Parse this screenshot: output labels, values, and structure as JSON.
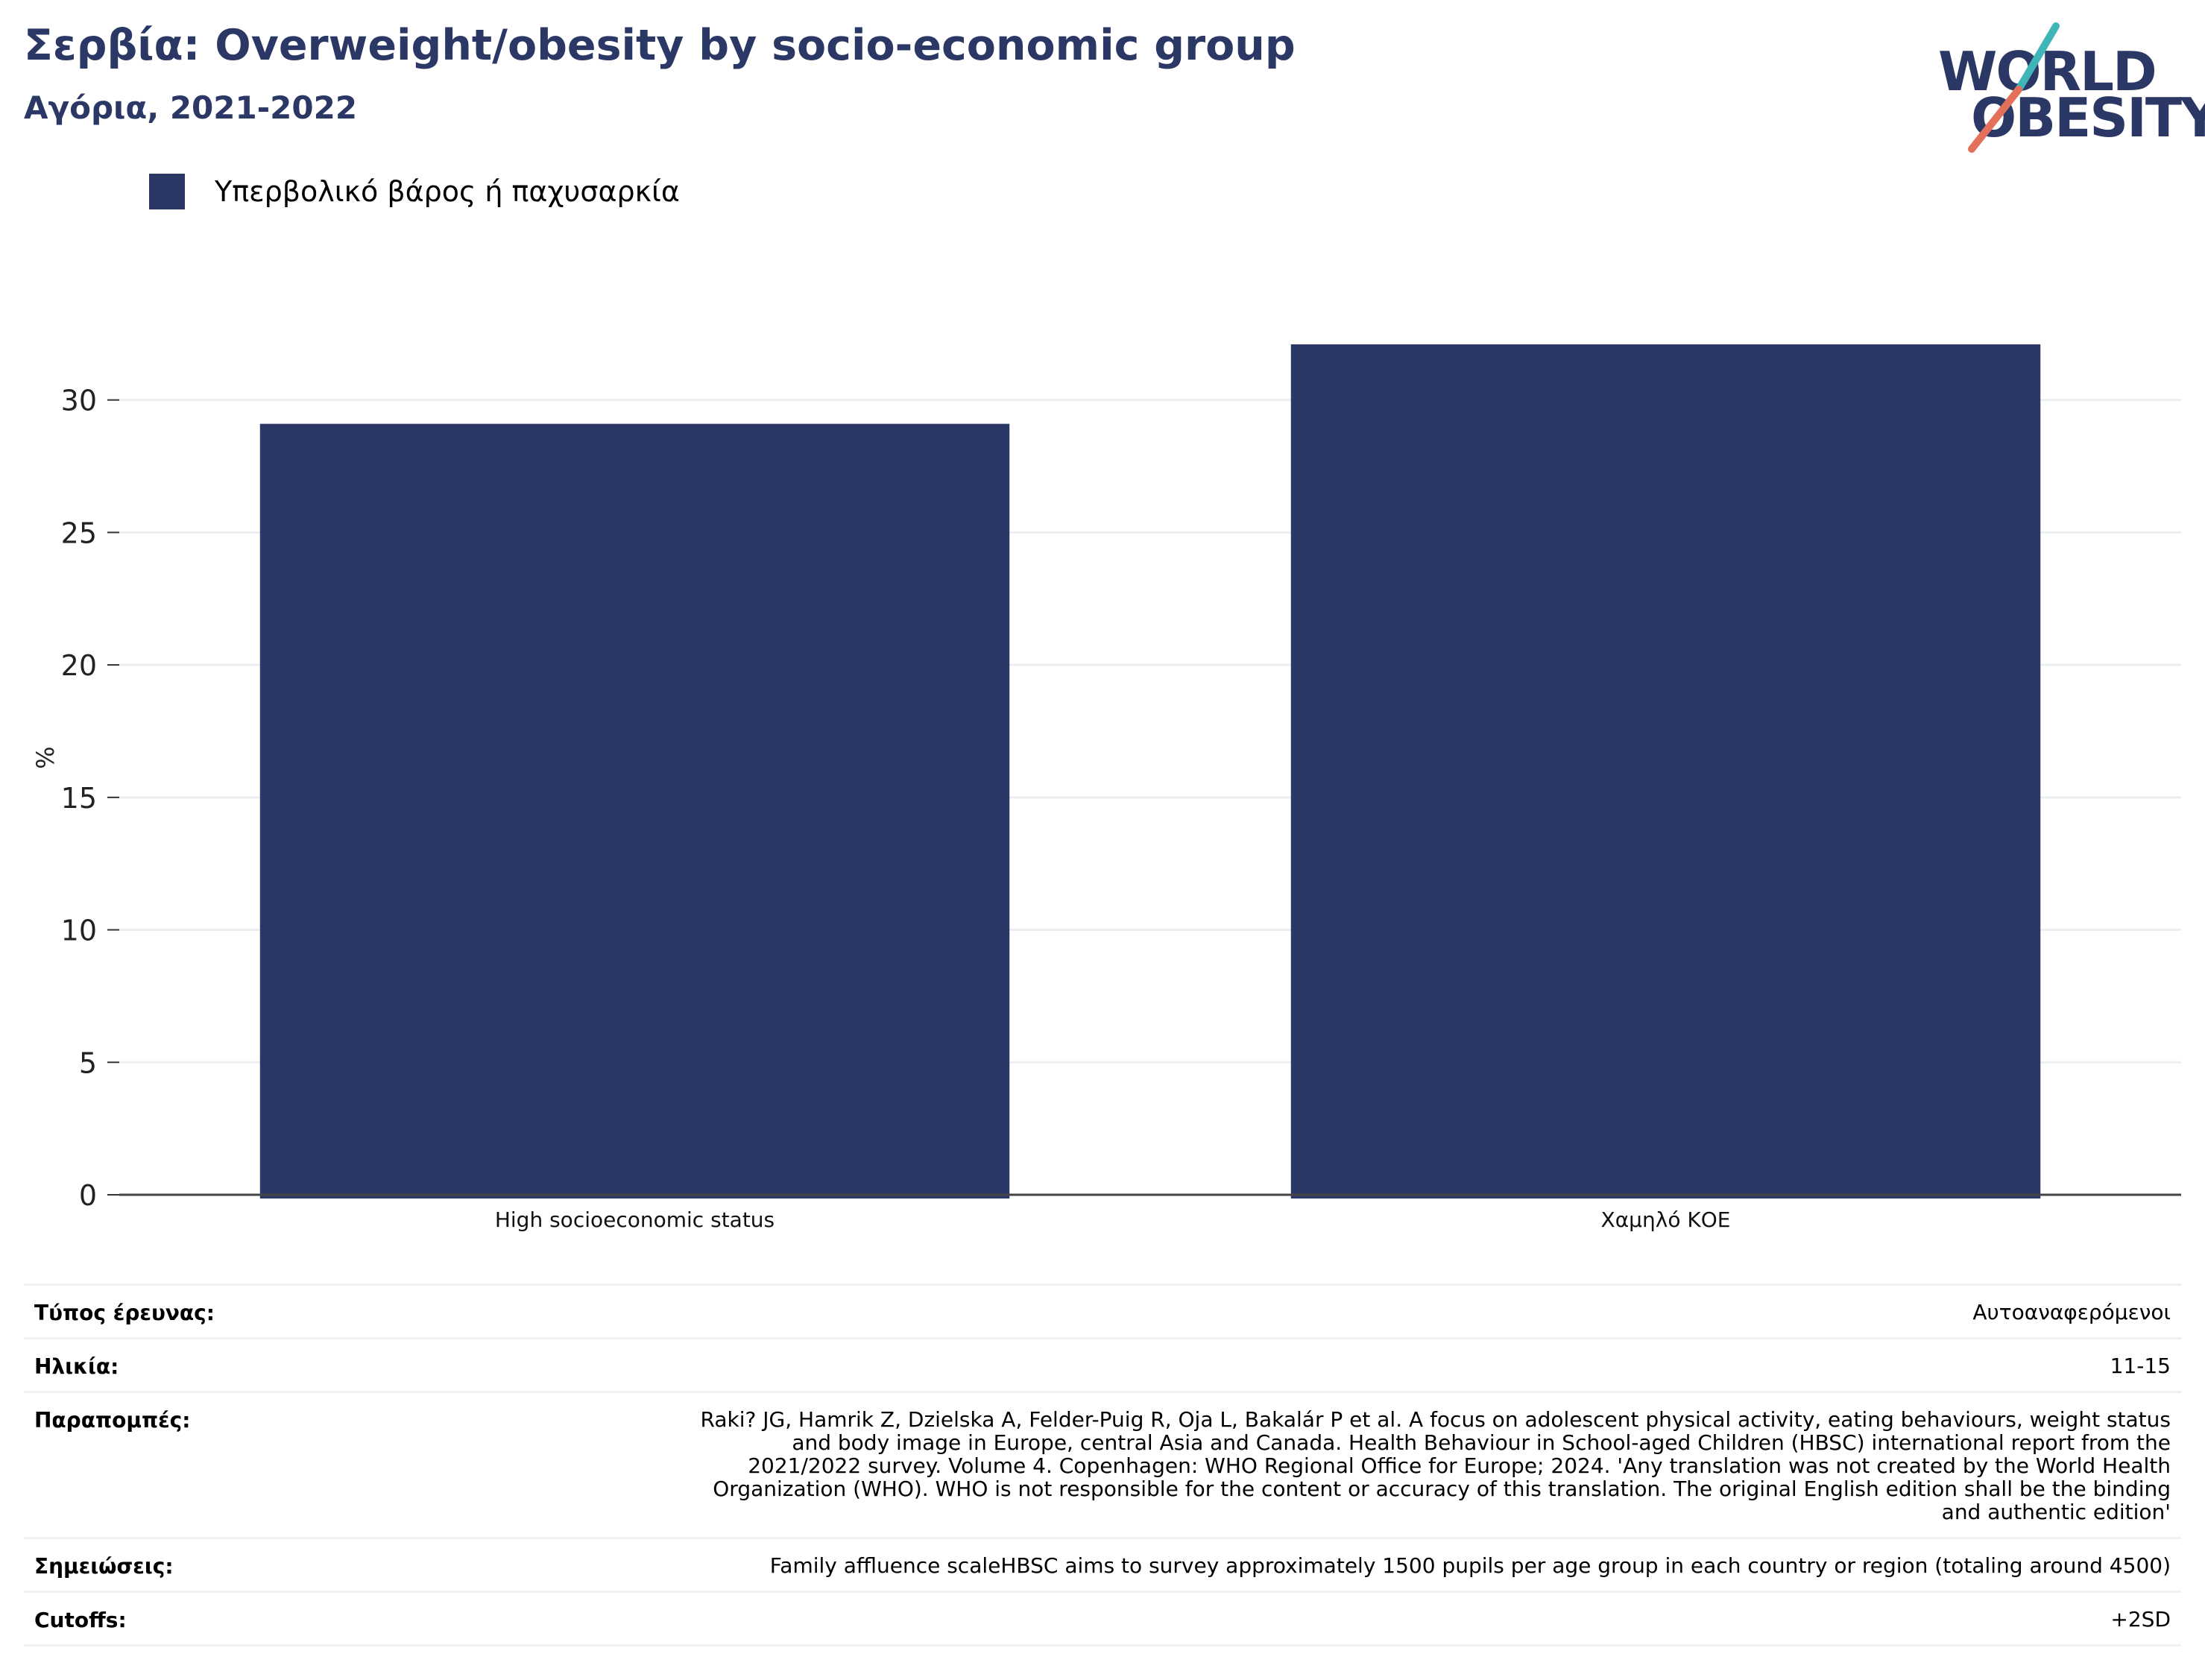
{
  "header": {
    "title": "Σερβία: Overweight/obesity by socio-economic group",
    "subtitle": "Αγόρια, 2021-2022"
  },
  "logo": {
    "line1": "WORLD",
    "line2": "OBESITY",
    "colors": {
      "text": "#2b3764",
      "slash_teal": "#3fb5b8",
      "slash_orange": "#e2705a"
    }
  },
  "legend": {
    "items": [
      {
        "label": "Υπερβολικό βάρος ή παχυσαρκία",
        "color": "#2b3764"
      }
    ]
  },
  "chart_data": {
    "type": "bar",
    "categories": [
      "High socioeconomic status",
      "Χαμηλό ΚΟΕ"
    ],
    "series": [
      {
        "name": "Υπερβολικό βάρος ή παχυσαρκία",
        "values": [
          29.1,
          32.1
        ],
        "color": "#2b3764"
      }
    ],
    "ylabel": "%",
    "ylim": [
      0,
      33
    ],
    "yticks": [
      0,
      5,
      10,
      15,
      20,
      25,
      30
    ],
    "grid": true,
    "legend_position": "top-left"
  },
  "info": {
    "rows": [
      {
        "label": "Τύπος έρευνας:",
        "value": "Αυτοαναφερόμενοι"
      },
      {
        "label": "Ηλικία:",
        "value": "11-15"
      },
      {
        "label": "Παραπομπές:",
        "lines": [
          "Raki? JG, Hamrik Z, Dzielska A, Felder-Puig R, Oja L, Bakalár P et al. A focus on adolescent physical activity, eating behaviours, weight status",
          "and body image in Europe, central Asia and Canada. Health Behaviour in School-aged Children (HBSC) international report from the",
          "2021/2022 survey. Volume 4. Copenhagen: WHO Regional Office for Europe; 2024. 'Any translation was not created by the World Health",
          "Organization (WHO). WHO is not responsible for the content or accuracy of this translation. The original English edition shall be the binding",
          "and authentic edition'"
        ]
      },
      {
        "label": "Σημειώσεις:",
        "value": "Family affluence scaleHBSC aims to survey approximately 1500 pupils per age group in each country or region (totaling around 4500)"
      },
      {
        "label": "Cutoffs:",
        "value": "+2SD"
      }
    ]
  }
}
